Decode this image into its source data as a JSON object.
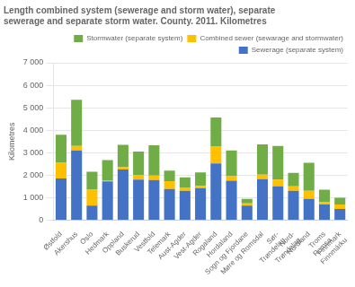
{
  "chart_data": {
    "type": "bar",
    "title": "Length combined system (sewerage and storm water), separate\nsewerage and separate storm water. County. 2011. Kilometres",
    "ylabel": "Kilometres",
    "categories": [
      "Østfold",
      "Akershus",
      "Oslo",
      "Hedmark",
      "Oppland",
      "Buskerud",
      "Vestfold",
      "Telemark",
      "Aust-Agder",
      "Vest-Agder",
      "Rogaland",
      "Hordaland",
      "Sogn og Fjordane",
      "Møre og Romsdal",
      "Sør-\nTrøndelag",
      "Nord-\nTrøndelag",
      "Nordland",
      "Troms\nRomsa",
      "Finnmark\nFinnmárku"
    ],
    "series": [
      {
        "name": "Sewerage (separate system)",
        "color": "#4472c4",
        "values": [
          1850,
          3100,
          650,
          1720,
          2250,
          1800,
          1780,
          1380,
          1300,
          1420,
          2520,
          1750,
          650,
          1820,
          1500,
          1300,
          950,
          700,
          500
        ]
      },
      {
        "name": "Combined sewer (sewarage and stormwater)",
        "color": "#ffc000",
        "values": [
          700,
          200,
          700,
          50,
          100,
          200,
          200,
          350,
          150,
          100,
          750,
          200,
          100,
          200,
          300,
          200,
          350,
          100,
          200
        ]
      },
      {
        "name": "Stormwater (separate system)",
        "color": "#70ad47",
        "values": [
          1250,
          2050,
          800,
          900,
          1000,
          1050,
          1350,
          470,
          450,
          600,
          1300,
          1150,
          200,
          1350,
          1500,
          600,
          1250,
          550,
          300
        ]
      }
    ],
    "stacked": true,
    "ylim": [
      0,
      7000
    ],
    "yticks": [
      0,
      {
        "value": 1000,
        "label": "1 000"
      },
      {
        "value": 2000,
        "label": "2 000"
      },
      {
        "value": 3000,
        "label": "3 000"
      },
      {
        "value": 4000,
        "label": "4 000"
      },
      {
        "value": 5000,
        "label": "5 000"
      },
      {
        "value": 6000,
        "label": "6 000"
      },
      {
        "value": 7000,
        "label": "7 000"
      }
    ],
    "grid": true,
    "legend": "upper right"
  }
}
